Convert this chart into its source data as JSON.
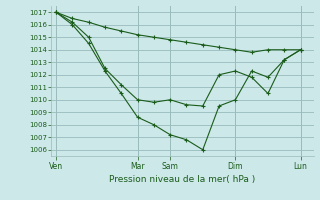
{
  "xlabel": "Pression niveau de la mer( hPa )",
  "background_color": "#cce8e8",
  "grid_color": "#99bbbb",
  "line_color": "#1a5c1a",
  "marker": "+",
  "ylim": [
    1005.5,
    1017.5
  ],
  "yticks": [
    1006,
    1007,
    1008,
    1009,
    1010,
    1011,
    1012,
    1013,
    1014,
    1015,
    1016,
    1017
  ],
  "x_day_labels": [
    "Ven",
    "Mar",
    "Sam",
    "Dim",
    "Lun"
  ],
  "x_day_positions": [
    0,
    5,
    7,
    11,
    15
  ],
  "xlim": [
    -0.3,
    15.8
  ],
  "line1_x": [
    0,
    1,
    2,
    3,
    4,
    5,
    6,
    7,
    8,
    9,
    10,
    11,
    12,
    13,
    14,
    15
  ],
  "line1_y": [
    1017,
    1016.5,
    1016.2,
    1015.8,
    1015.5,
    1015.2,
    1015.0,
    1014.8,
    1014.6,
    1014.4,
    1014.2,
    1014.0,
    1013.8,
    1014.0,
    1014.0,
    1014.0
  ],
  "line2_x": [
    0,
    1,
    2,
    3,
    4,
    5,
    6,
    7,
    8,
    9,
    10,
    11,
    12,
    13,
    14,
    15
  ],
  "line2_y": [
    1017,
    1016.2,
    1015.0,
    1012.5,
    1011.2,
    1010.0,
    1009.8,
    1010.0,
    1009.6,
    1009.5,
    1012.0,
    1012.3,
    1011.8,
    1010.5,
    1013.2,
    1014.0
  ],
  "line3_x": [
    0,
    1,
    2,
    3,
    4,
    5,
    6,
    7,
    8,
    9,
    10,
    11,
    12,
    13,
    14,
    15
  ],
  "line3_y": [
    1017,
    1016.0,
    1014.5,
    1012.3,
    1010.5,
    1008.6,
    1008.0,
    1007.2,
    1006.8,
    1006.0,
    1009.5,
    1010.0,
    1012.3,
    1011.8,
    1013.2,
    1014.0
  ]
}
